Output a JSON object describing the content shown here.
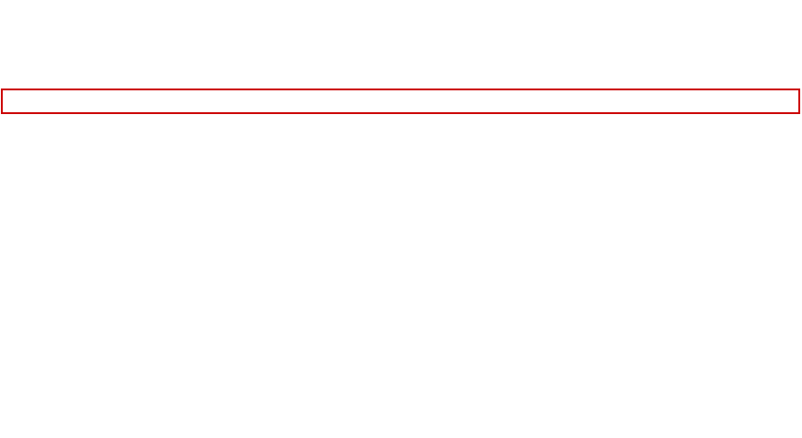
{
  "highlighted_field": {
    "value": "",
    "placeholder": "",
    "border_color": "#cc0000"
  },
  "background_color": "#ffffff"
}
